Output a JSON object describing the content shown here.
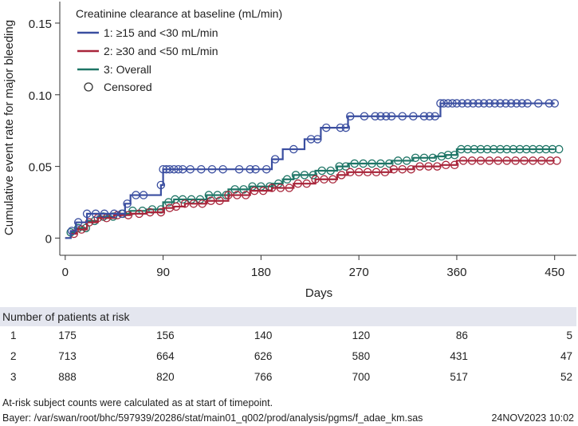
{
  "chart_data": {
    "type": "line",
    "step": true,
    "title": "",
    "ylabel": "Cumulative event rate for major bleeding",
    "xlabel": "Days",
    "xlim": [
      -5,
      470
    ],
    "ylim": [
      -0.012,
      0.165
    ],
    "x_ticks": [
      0,
      90,
      180,
      270,
      360,
      450
    ],
    "x_tick_labels": [
      "0",
      "90",
      "180",
      "270",
      "360",
      "450"
    ],
    "y_ticks": [
      0,
      0.05,
      0.1,
      0.15
    ],
    "y_tick_labels": [
      "0",
      "0.05",
      "0.10",
      "0.15"
    ],
    "legend": {
      "title": "Creatinine clearance at baseline (mL/min)",
      "position": "top-left",
      "censored_label": "Censored"
    },
    "series": [
      {
        "name": "1: ≥15 and <30 mL/min",
        "color": "#3a4ea0",
        "x": [
          0,
          5,
          10,
          20,
          30,
          40,
          55,
          60,
          70,
          88,
          90,
          95,
          120,
          150,
          175,
          190,
          200,
          210,
          220,
          230,
          235,
          250,
          260,
          275,
          300,
          330,
          345,
          350,
          380,
          420,
          450
        ],
        "y": [
          0,
          0.005,
          0.011,
          0.017,
          0.017,
          0.017,
          0.024,
          0.03,
          0.03,
          0.037,
          0.048,
          0.048,
          0.048,
          0.048,
          0.048,
          0.055,
          0.062,
          0.062,
          0.069,
          0.069,
          0.077,
          0.077,
          0.085,
          0.085,
          0.085,
          0.085,
          0.094,
          0.094,
          0.094,
          0.094,
          0.094
        ],
        "censored_x": [
          6,
          12,
          20,
          28,
          36,
          45,
          52,
          57,
          65,
          72,
          88,
          90,
          93,
          96,
          100,
          104,
          108,
          115,
          125,
          135,
          145,
          160,
          170,
          175,
          185,
          193,
          210,
          226,
          232,
          240,
          253,
          258,
          262,
          275,
          285,
          290,
          295,
          300,
          310,
          320,
          330,
          335,
          340,
          345,
          348,
          352,
          356,
          360,
          365,
          370,
          375,
          380,
          385,
          390,
          395,
          400,
          405,
          410,
          415,
          420,
          425,
          435,
          445,
          450
        ]
      },
      {
        "name": "2: ≥30 and <50 mL/min",
        "color": "#a8253a",
        "x": [
          0,
          5,
          10,
          20,
          30,
          45,
          60,
          75,
          90,
          100,
          110,
          130,
          150,
          170,
          190,
          210,
          230,
          250,
          260,
          280,
          300,
          320,
          345,
          360,
          400,
          450
        ],
        "y": [
          0,
          0.003,
          0.006,
          0.011,
          0.014,
          0.016,
          0.017,
          0.018,
          0.021,
          0.022,
          0.024,
          0.026,
          0.03,
          0.033,
          0.035,
          0.038,
          0.041,
          0.044,
          0.046,
          0.046,
          0.048,
          0.05,
          0.051,
          0.054,
          0.054,
          0.054
        ],
        "censored_x": [
          8,
          15,
          22,
          30,
          38,
          48,
          58,
          68,
          78,
          88,
          96,
          102,
          110,
          118,
          126,
          134,
          142,
          150,
          158,
          166,
          174,
          182,
          190,
          198,
          206,
          214,
          222,
          230,
          238,
          246,
          254,
          262,
          270,
          278,
          286,
          294,
          302,
          310,
          318,
          326,
          334,
          342,
          350,
          358,
          366,
          374,
          382,
          390,
          398,
          406,
          414,
          422,
          430,
          438,
          446,
          452
        ]
      },
      {
        "name": "3: Overall",
        "color": "#1e7566",
        "x": [
          0,
          5,
          10,
          20,
          30,
          45,
          60,
          75,
          90,
          100,
          110,
          130,
          150,
          170,
          190,
          200,
          210,
          230,
          250,
          260,
          280,
          300,
          320,
          340,
          350,
          360,
          400,
          450
        ],
        "y": [
          0,
          0.004,
          0.007,
          0.012,
          0.015,
          0.017,
          0.019,
          0.02,
          0.025,
          0.027,
          0.027,
          0.03,
          0.034,
          0.036,
          0.038,
          0.041,
          0.044,
          0.047,
          0.05,
          0.052,
          0.052,
          0.054,
          0.056,
          0.057,
          0.058,
          0.062,
          0.062,
          0.062
        ],
        "censored_x": [
          5,
          12,
          19,
          27,
          35,
          44,
          53,
          62,
          71,
          80,
          88,
          95,
          101,
          108,
          116,
          124,
          132,
          140,
          148,
          156,
          164,
          172,
          180,
          188,
          196,
          204,
          212,
          220,
          228,
          236,
          244,
          252,
          258,
          266,
          274,
          282,
          290,
          298,
          306,
          314,
          322,
          330,
          338,
          346,
          352,
          358,
          364,
          370,
          376,
          382,
          388,
          394,
          400,
          406,
          412,
          418,
          424,
          430,
          436,
          442,
          448,
          454
        ]
      }
    ]
  },
  "risk_table": {
    "title": "Number of patients at risk",
    "rows": [
      {
        "label": "1",
        "values": [
          "175",
          "156",
          "140",
          "120",
          "86",
          "5"
        ]
      },
      {
        "label": "2",
        "values": [
          "713",
          "664",
          "626",
          "580",
          "431",
          "47"
        ]
      },
      {
        "label": "3",
        "values": [
          "888",
          "820",
          "766",
          "700",
          "517",
          "52"
        ]
      }
    ]
  },
  "footnote": "At-risk subject counts were calculated as at start of timepoint.",
  "source": "Bayer: /var/swan/root/bhc/597939/20286/stat/main01_q002/prod/analysis/pgms/f_adae_km.sas",
  "timestamp": "24NOV2023 10:02"
}
